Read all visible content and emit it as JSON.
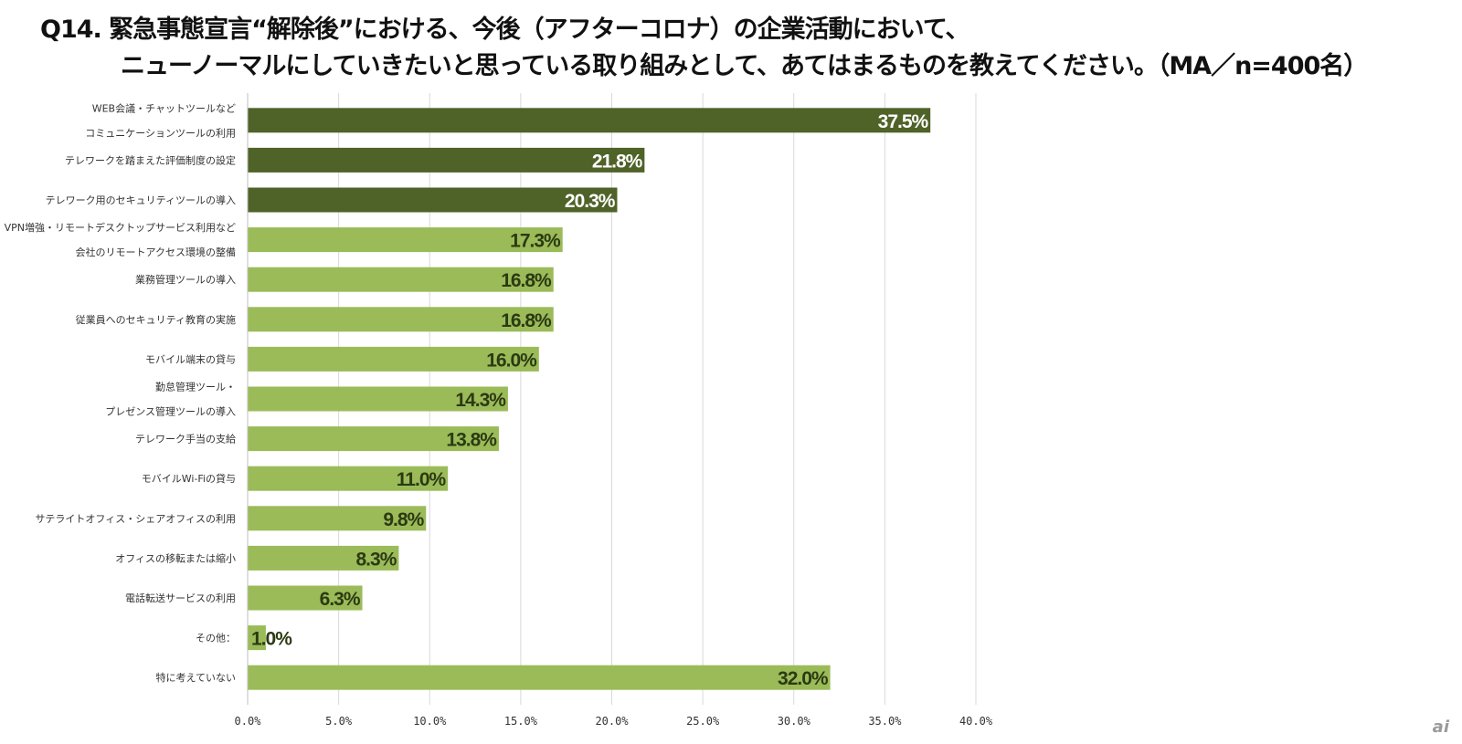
{
  "header": {
    "title_line1": "Q14. 緊急事態宣言“解除後”における、今後（アフターコロナ）の企業活動において、",
    "title_line2": "ニューノーマルにしていきたいと思っている取り組みとして、あてはまるものを教えてください。（MA／n=400名）"
  },
  "logo": "ai",
  "colors": {
    "dark_bar": "#4f6228",
    "light_bar": "#9bbb59",
    "grid": "#d9d9d9",
    "dark_label": "#ffffff",
    "light_label": "#2b3a12"
  },
  "chart_data": {
    "type": "bar",
    "orientation": "horizontal",
    "title": "Q14. 緊急事態宣言“解除後”における、今後（アフターコロナ）の企業活動において、ニューノーマルにしていきたいと思っている取り組みとして、あてはまるものを教えてください。（MA／n=400名）",
    "xlabel": "",
    "ylabel": "",
    "xlim": [
      0,
      40
    ],
    "grid": true,
    "categories": [
      [
        "WEB会議・チャットツールなど",
        "コミュニケーションツールの利用"
      ],
      [
        "テレワークを踏まえた評価制度の設定"
      ],
      [
        "テレワーク用のセキュリティツールの導入"
      ],
      [
        "VPN増強・リモートデスクトップサービス利用など",
        "会社のリモートアクセス環境の整備"
      ],
      [
        "業務管理ツールの導入"
      ],
      [
        "従業員へのセキュリティ教育の実施"
      ],
      [
        "モバイル端末の貸与"
      ],
      [
        "勤怠管理ツール・",
        "プレゼンス管理ツールの導入"
      ],
      [
        "テレワーク手当の支給"
      ],
      [
        "モバイルWi-Fiの貸与"
      ],
      [
        "サテライトオフィス・シェアオフィスの利用"
      ],
      [
        "オフィスの移転または縮小"
      ],
      [
        "電話転送サービスの利用"
      ],
      [
        "その他："
      ],
      [
        "特に考えていない"
      ]
    ],
    "values": [
      37.5,
      21.8,
      20.3,
      17.3,
      16.8,
      16.8,
      16.0,
      14.3,
      13.8,
      11.0,
      9.8,
      8.3,
      6.3,
      1.0,
      32.0
    ],
    "value_labels": [
      "37.5%",
      "21.8%",
      "20.3%",
      "17.3%",
      "16.8%",
      "16.8%",
      "16.0%",
      "14.3%",
      "13.8%",
      "11.0%",
      "9.8%",
      "8.3%",
      "6.3%",
      "1.0%",
      "32.0%"
    ],
    "highlight": [
      true,
      true,
      true,
      false,
      false,
      false,
      false,
      false,
      false,
      false,
      false,
      false,
      false,
      false,
      false
    ],
    "x_ticks": [
      0,
      5,
      10,
      15,
      20,
      25,
      30,
      35,
      40
    ],
    "x_tick_labels": [
      "0.0%",
      "5.0%",
      "10.0%",
      "15.0%",
      "20.0%",
      "25.0%",
      "30.0%",
      "35.0%",
      "40.0%"
    ],
    "legend": "none"
  }
}
